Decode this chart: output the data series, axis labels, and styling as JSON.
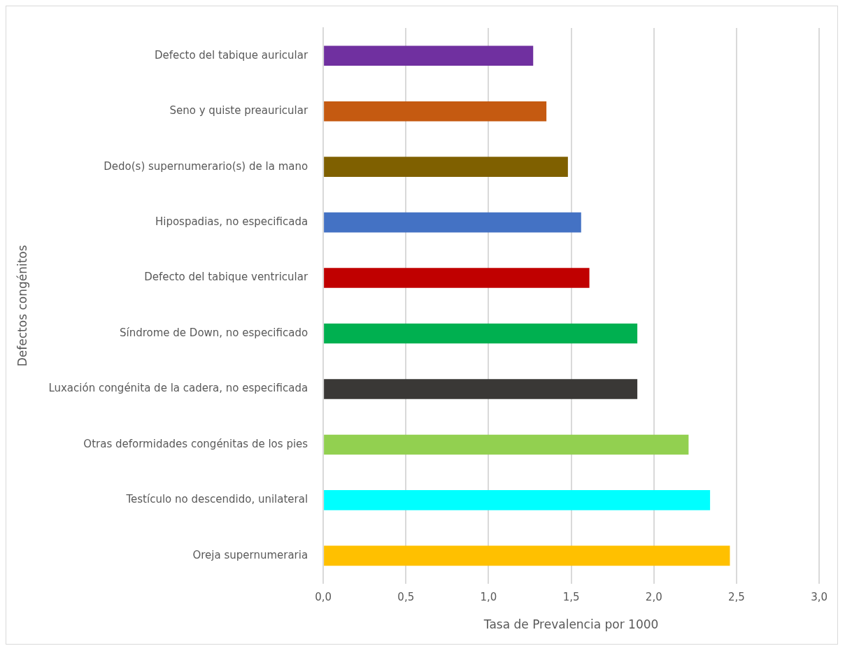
{
  "chart_data": {
    "type": "bar",
    "orientation": "horizontal",
    "xlabel": "Tasa de Prevalencia por 1000",
    "ylabel": "Defectos congénitos",
    "categories": [
      "Defecto del tabique auricular",
      "Seno y quiste preauricular",
      "Dedo(s) supernumerario(s) de la mano",
      "Hipospadias, no especificada",
      "Defecto del tabique ventricular",
      "Síndrome de Down, no especificado",
      "Luxación congénita de la cadera, no especificada",
      "Otras deformidades congénitas de los pies",
      "Testículo no descendido, unilateral",
      "Oreja supernumeraria"
    ],
    "values": [
      1.27,
      1.35,
      1.48,
      1.56,
      1.61,
      1.9,
      1.9,
      2.21,
      2.34,
      2.46
    ],
    "colors": [
      "#7030a0",
      "#c55a11",
      "#7f6000",
      "#4472c4",
      "#c00000",
      "#00b050",
      "#3a3836",
      "#92d050",
      "#00ffff",
      "#ffc000"
    ],
    "xlim": [
      0,
      3
    ],
    "xticks": [
      {
        "value": 0,
        "label": "0,0"
      },
      {
        "value": 0.5,
        "label": "0,5"
      },
      {
        "value": 1,
        "label": "1,0"
      },
      {
        "value": 1.5,
        "label": "1,5"
      },
      {
        "value": 2,
        "label": "2,0"
      },
      {
        "value": 2.5,
        "label": "2,5"
      },
      {
        "value": 3,
        "label": "3,0"
      }
    ],
    "grid": "x",
    "legend": false
  }
}
